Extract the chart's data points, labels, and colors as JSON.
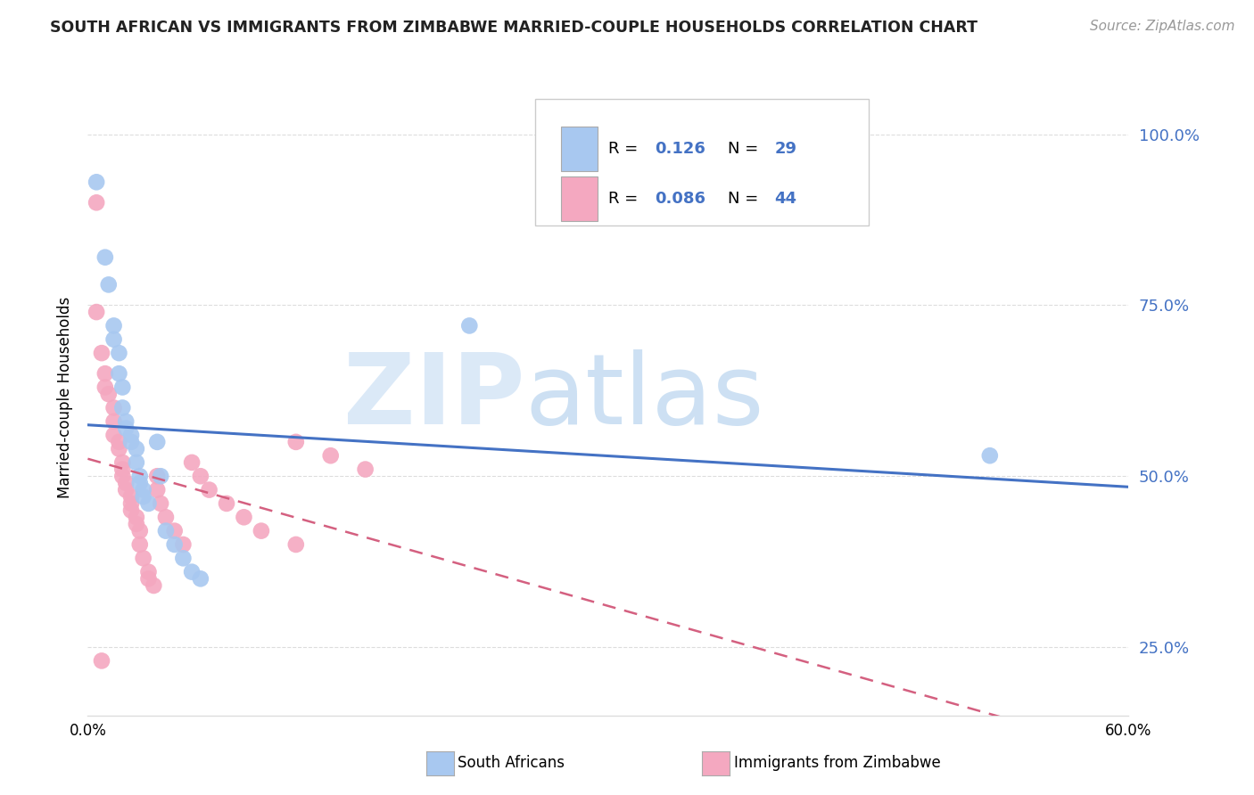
{
  "title": "SOUTH AFRICAN VS IMMIGRANTS FROM ZIMBABWE MARRIED-COUPLE HOUSEHOLDS CORRELATION CHART",
  "source": "Source: ZipAtlas.com",
  "ylabel": "Married-couple Households",
  "color_blue": "#A8C8F0",
  "color_pink": "#F4A8C0",
  "trendline_blue": "#4472C4",
  "trendline_pink": "#D46080",
  "xmin": 0.0,
  "xmax": 0.6,
  "ymin": 0.15,
  "ymax": 1.08,
  "yticks": [
    0.25,
    0.5,
    0.75,
    1.0
  ],
  "ytick_labels": [
    "25.0%",
    "50.0%",
    "75.0%",
    "100.0%"
  ],
  "sa_points": [
    [
      0.005,
      0.93
    ],
    [
      0.01,
      0.82
    ],
    [
      0.012,
      0.78
    ],
    [
      0.015,
      0.72
    ],
    [
      0.015,
      0.7
    ],
    [
      0.018,
      0.68
    ],
    [
      0.018,
      0.65
    ],
    [
      0.02,
      0.63
    ],
    [
      0.02,
      0.6
    ],
    [
      0.022,
      0.58
    ],
    [
      0.022,
      0.57
    ],
    [
      0.025,
      0.56
    ],
    [
      0.025,
      0.55
    ],
    [
      0.028,
      0.54
    ],
    [
      0.028,
      0.52
    ],
    [
      0.03,
      0.5
    ],
    [
      0.03,
      0.49
    ],
    [
      0.032,
      0.48
    ],
    [
      0.032,
      0.47
    ],
    [
      0.035,
      0.46
    ],
    [
      0.04,
      0.55
    ],
    [
      0.042,
      0.5
    ],
    [
      0.045,
      0.42
    ],
    [
      0.05,
      0.4
    ],
    [
      0.055,
      0.38
    ],
    [
      0.06,
      0.36
    ],
    [
      0.065,
      0.35
    ],
    [
      0.22,
      0.72
    ],
    [
      0.52,
      0.53
    ]
  ],
  "zim_points": [
    [
      0.005,
      0.9
    ],
    [
      0.005,
      0.74
    ],
    [
      0.008,
      0.68
    ],
    [
      0.01,
      0.65
    ],
    [
      0.01,
      0.63
    ],
    [
      0.012,
      0.62
    ],
    [
      0.015,
      0.6
    ],
    [
      0.015,
      0.58
    ],
    [
      0.015,
      0.56
    ],
    [
      0.018,
      0.55
    ],
    [
      0.018,
      0.54
    ],
    [
      0.02,
      0.52
    ],
    [
      0.02,
      0.51
    ],
    [
      0.02,
      0.5
    ],
    [
      0.022,
      0.49
    ],
    [
      0.022,
      0.48
    ],
    [
      0.025,
      0.47
    ],
    [
      0.025,
      0.46
    ],
    [
      0.025,
      0.45
    ],
    [
      0.028,
      0.44
    ],
    [
      0.028,
      0.43
    ],
    [
      0.03,
      0.42
    ],
    [
      0.03,
      0.4
    ],
    [
      0.032,
      0.38
    ],
    [
      0.035,
      0.36
    ],
    [
      0.035,
      0.35
    ],
    [
      0.038,
      0.34
    ],
    [
      0.04,
      0.5
    ],
    [
      0.04,
      0.48
    ],
    [
      0.042,
      0.46
    ],
    [
      0.045,
      0.44
    ],
    [
      0.05,
      0.42
    ],
    [
      0.055,
      0.4
    ],
    [
      0.06,
      0.52
    ],
    [
      0.065,
      0.5
    ],
    [
      0.07,
      0.48
    ],
    [
      0.08,
      0.46
    ],
    [
      0.09,
      0.44
    ],
    [
      0.1,
      0.42
    ],
    [
      0.12,
      0.4
    ],
    [
      0.008,
      0.23
    ],
    [
      0.12,
      0.55
    ],
    [
      0.14,
      0.53
    ],
    [
      0.16,
      0.51
    ]
  ],
  "watermark_zip_color": "#cce0f5",
  "watermark_atlas_color": "#b8d4ee",
  "grid_color": "#dddddd",
  "spine_color": "#dddddd",
  "ytick_color": "#4472C4",
  "title_color": "#222222",
  "source_color": "#999999"
}
